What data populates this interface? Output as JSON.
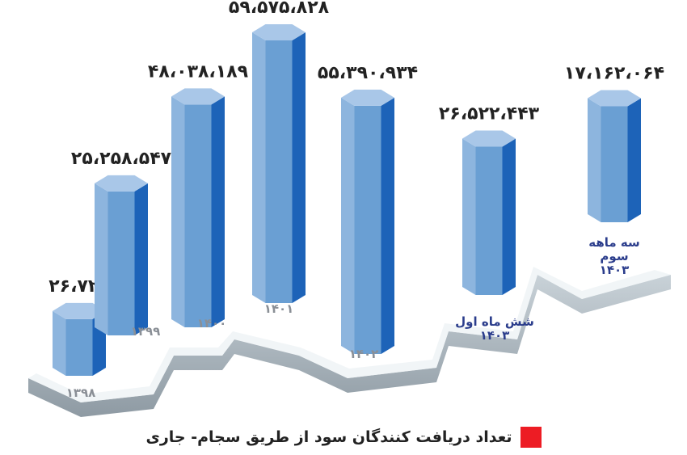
{
  "chart_data": {
    "type": "bar",
    "categories": [
      "۱۳۹۸",
      "۱۳۹۹",
      "۱۴۰۰",
      "۱۴۰۱",
      "۱۴۰۲",
      "شش ماه اول\n۱۴۰۳",
      "سه ماهه سوم\n۱۴۰۳"
    ],
    "series": [
      {
        "name": "تعداد دریافت کنندگان سود از طریق سجام- جاری",
        "color": "#ed1c24",
        "values": [
          26722,
          25258547,
          48038189,
          59575828,
          55390934,
          26522443,
          17162064
        ],
        "value_labels": [
          "۲۶،۷۲۲",
          "۲۵،۲۵۸،۵۴۷",
          "۴۸،۰۳۸،۱۸۹",
          "۵۹،۵۷۵،۸۲۸",
          "۵۵،۳۹۰،۹۳۴",
          "۲۶،۵۲۲،۴۴۳",
          "۱۷،۱۶۲،۰۶۴"
        ]
      }
    ],
    "bar_color": "#6a9fd3",
    "legend": "bottom"
  }
}
